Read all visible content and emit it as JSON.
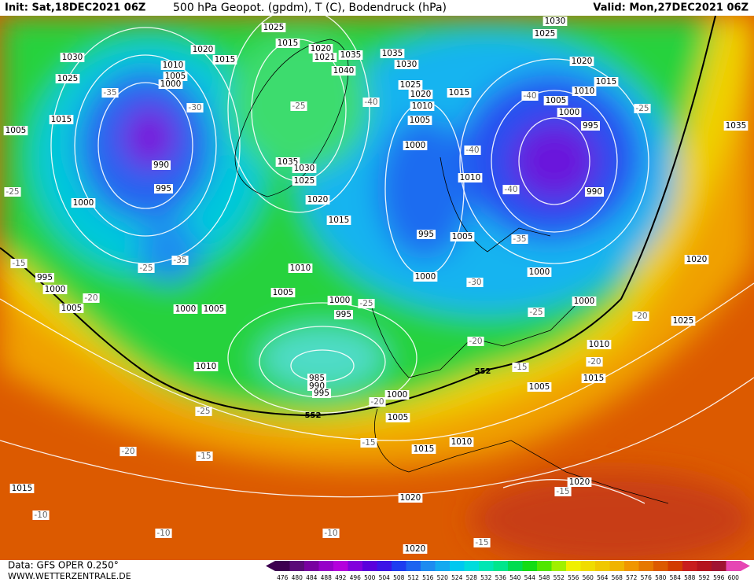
{
  "header": {
    "init": "Init: Sat,18DEC2021 06Z",
    "title": "500 hPa Geopot. (gpdm), T (C), Bodendruck (hPa)",
    "valid": "Valid: Mon,27DEC2021 06Z"
  },
  "footer": {
    "data": "Data: GFS OPER 0.250°",
    "site": "WWW.WETTERZENTRALE.DE"
  },
  "pressure_labels": [
    1025,
    1015,
    1020,
    1015,
    1020,
    1021,
    1035,
    1040,
    1030,
    1025,
    1010,
    1005,
    1000,
    1015,
    1005,
    990,
    995,
    1000,
    1035,
    1030,
    1025,
    1020,
    1015,
    1035,
    1030,
    1025,
    1020,
    1015,
    1010,
    1005,
    1000,
    1010,
    995,
    1005,
    1000,
    1030,
    1025,
    1020,
    1015,
    1010,
    1005,
    1000,
    995,
    990,
    1035,
    1010,
    1005,
    1000,
    995,
    1000,
    1005,
    995,
    1000,
    1005,
    1010,
    985,
    990,
    995,
    1000,
    1005,
    1015,
    1010,
    1000,
    1000,
    1010,
    1015,
    1005,
    1020,
    1025,
    1015,
    1020,
    1020,
    1020
  ],
  "temperature_labels": [
    -35,
    -30,
    -25,
    -40,
    -40,
    -25,
    -25,
    -15,
    -25,
    -35,
    -40,
    -40,
    -35,
    -30,
    -25,
    -25,
    -20,
    -20,
    -15,
    -20,
    -20,
    -25,
    -20,
    -15,
    -20,
    -15,
    -15,
    -10,
    -10,
    -10,
    -15
  ],
  "height_labels": [
    552,
    552
  ],
  "colorbar": {
    "values": [
      476,
      480,
      484,
      488,
      492,
      496,
      500,
      504,
      508,
      512,
      516,
      520,
      524,
      528,
      532,
      536,
      540,
      544,
      548,
      552,
      556,
      560,
      564,
      568,
      572,
      576,
      580,
      584,
      588,
      592,
      596,
      600
    ],
    "colors": [
      "#3c0050",
      "#5a0a78",
      "#7800a0",
      "#9600c8",
      "#b400dc",
      "#8200dc",
      "#5a00dc",
      "#3c14e6",
      "#1e3cf0",
      "#1e64f0",
      "#1e8cf0",
      "#14aaf0",
      "#00c8f0",
      "#00dcdc",
      "#00e6b4",
      "#00e68c",
      "#00dc50",
      "#14dc14",
      "#50e600",
      "#a0f000",
      "#f0f000",
      "#f0dc00",
      "#f0c800",
      "#f0b400",
      "#f09600",
      "#e67800",
      "#dc5a00",
      "#d23c00",
      "#c81e1e",
      "#b4141e",
      "#a01432",
      "#e646b4"
    ]
  }
}
